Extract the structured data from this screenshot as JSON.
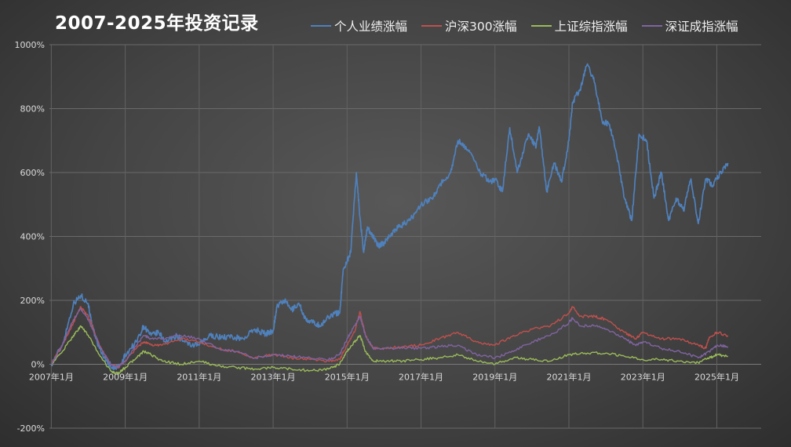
{
  "chart_data": {
    "type": "line",
    "title": "2007-2025年投资记录",
    "xlabel": "",
    "ylabel": "",
    "x_tick_labels": [
      "2007年1月",
      "2009年1月",
      "2011年1月",
      "2013年1月",
      "2015年1月",
      "2017年1月",
      "2019年1月",
      "2021年1月",
      "2023年1月",
      "2025年1月"
    ],
    "x_tick_years": [
      2007,
      2009,
      2011,
      2013,
      2015,
      2017,
      2019,
      2021,
      2023,
      2025
    ],
    "y_tick_labels": [
      "-200%",
      "0%",
      "200%",
      "400%",
      "600%",
      "800%",
      "1000%"
    ],
    "y_tick_values": [
      -200,
      0,
      200,
      400,
      600,
      800,
      1000
    ],
    "xlim": [
      2006.95,
      2026.2
    ],
    "ylim": [
      -200,
      1000
    ],
    "grid": true,
    "legend_position": "top",
    "series": [
      {
        "name": "个人业绩涨幅",
        "color": "#4f81bd",
        "x": [
          2007.0,
          2007.3,
          2007.6,
          2007.8,
          2008.0,
          2008.1,
          2008.3,
          2008.5,
          2008.7,
          2008.9,
          2009.0,
          2009.3,
          2009.5,
          2009.7,
          2009.9,
          2010.1,
          2010.4,
          2010.7,
          2011.0,
          2011.3,
          2011.6,
          2011.9,
          2012.2,
          2012.5,
          2012.8,
          2013.0,
          2013.1,
          2013.3,
          2013.5,
          2013.7,
          2013.9,
          2014.1,
          2014.3,
          2014.5,
          2014.7,
          2014.8,
          2014.9,
          2015.1,
          2015.25,
          2015.35,
          2015.45,
          2015.55,
          2015.7,
          2015.85,
          2016.0,
          2016.2,
          2016.4,
          2016.7,
          2017.0,
          2017.3,
          2017.5,
          2017.8,
          2018.0,
          2018.3,
          2018.6,
          2018.9,
          2019.0,
          2019.2,
          2019.4,
          2019.6,
          2019.9,
          2020.1,
          2020.2,
          2020.4,
          2020.6,
          2020.8,
          2021.0,
          2021.1,
          2021.3,
          2021.5,
          2021.7,
          2021.9,
          2022.1,
          2022.3,
          2022.5,
          2022.7,
          2022.9,
          2023.1,
          2023.3,
          2023.5,
          2023.7,
          2023.9,
          2024.1,
          2024.3,
          2024.5,
          2024.7,
          2024.9,
          2025.1,
          2025.3
        ],
        "values": [
          0,
          60,
          190,
          215,
          190,
          120,
          50,
          10,
          -15,
          0,
          30,
          70,
          120,
          90,
          100,
          70,
          90,
          60,
          60,
          90,
          85,
          85,
          80,
          110,
          95,
          105,
          180,
          200,
          170,
          190,
          135,
          130,
          120,
          150,
          160,
          160,
          300,
          350,
          600,
          460,
          350,
          430,
          400,
          370,
          380,
          410,
          430,
          450,
          500,
          520,
          560,
          600,
          700,
          670,
          600,
          570,
          580,
          540,
          740,
          600,
          720,
          680,
          740,
          540,
          630,
          570,
          700,
          820,
          860,
          940,
          880,
          760,
          750,
          650,
          520,
          450,
          720,
          700,
          520,
          600,
          450,
          520,
          480,
          580,
          440,
          580,
          560,
          600,
          630
        ]
      },
      {
        "name": "沪深300涨幅",
        "color": "#c0504d",
        "x": [
          2007.0,
          2007.3,
          2007.6,
          2007.8,
          2008.0,
          2008.3,
          2008.6,
          2008.8,
          2009.0,
          2009.3,
          2009.5,
          2009.7,
          2010.0,
          2010.5,
          2011.0,
          2011.5,
          2012.0,
          2012.5,
          2013.0,
          2013.5,
          2014.0,
          2014.5,
          2014.8,
          2015.0,
          2015.2,
          2015.35,
          2015.5,
          2015.7,
          2016.0,
          2016.5,
          2017.0,
          2017.5,
          2018.0,
          2018.5,
          2019.0,
          2019.5,
          2020.0,
          2020.5,
          2021.0,
          2021.1,
          2021.3,
          2021.7,
          2022.0,
          2022.5,
          2022.8,
          2023.0,
          2023.5,
          2024.0,
          2024.5,
          2024.7,
          2024.8,
          2025.0,
          2025.3
        ],
        "values": [
          0,
          60,
          130,
          180,
          150,
          60,
          0,
          -10,
          10,
          50,
          70,
          60,
          60,
          80,
          70,
          50,
          40,
          20,
          30,
          20,
          15,
          10,
          15,
          60,
          100,
          165,
          90,
          50,
          50,
          55,
          60,
          80,
          100,
          70,
          60,
          90,
          110,
          120,
          160,
          180,
          150,
          150,
          140,
          100,
          80,
          100,
          80,
          80,
          60,
          50,
          85,
          100,
          90
        ]
      },
      {
        "name": "上证综指涨幅",
        "color": "#9bbb59",
        "x": [
          2007.0,
          2007.3,
          2007.6,
          2007.8,
          2008.0,
          2008.3,
          2008.6,
          2008.8,
          2009.0,
          2009.3,
          2009.5,
          2009.7,
          2010.0,
          2010.5,
          2011.0,
          2011.5,
          2012.0,
          2012.5,
          2013.0,
          2013.5,
          2014.0,
          2014.5,
          2014.8,
          2015.0,
          2015.2,
          2015.35,
          2015.5,
          2015.7,
          2016.0,
          2016.5,
          2017.0,
          2017.5,
          2018.0,
          2018.5,
          2019.0,
          2019.5,
          2020.0,
          2020.5,
          2021.0,
          2021.5,
          2022.0,
          2022.5,
          2023.0,
          2023.5,
          2024.0,
          2024.5,
          2024.8,
          2025.0,
          2025.3
        ],
        "values": [
          0,
          40,
          90,
          120,
          90,
          30,
          -20,
          -30,
          -10,
          20,
          40,
          30,
          10,
          0,
          10,
          -5,
          -10,
          -15,
          -10,
          -15,
          -20,
          -15,
          0,
          40,
          70,
          90,
          40,
          10,
          10,
          10,
          15,
          20,
          30,
          10,
          0,
          20,
          15,
          10,
          30,
          35,
          35,
          25,
          15,
          15,
          10,
          5,
          20,
          30,
          25
        ]
      },
      {
        "name": "深证成指涨幅",
        "color": "#8064a2",
        "x": [
          2007.0,
          2007.3,
          2007.6,
          2007.8,
          2008.0,
          2008.3,
          2008.6,
          2008.8,
          2009.0,
          2009.3,
          2009.5,
          2009.7,
          2010.0,
          2010.5,
          2011.0,
          2011.5,
          2012.0,
          2012.5,
          2013.0,
          2013.5,
          2014.0,
          2014.5,
          2014.8,
          2015.0,
          2015.2,
          2015.35,
          2015.5,
          2015.7,
          2016.0,
          2016.5,
          2017.0,
          2017.5,
          2018.0,
          2018.5,
          2019.0,
          2019.5,
          2020.0,
          2020.5,
          2021.0,
          2021.1,
          2021.3,
          2021.7,
          2022.0,
          2022.5,
          2022.8,
          2023.0,
          2023.5,
          2024.0,
          2024.5,
          2024.8,
          2025.0,
          2025.3
        ],
        "values": [
          0,
          60,
          140,
          175,
          140,
          60,
          0,
          -10,
          10,
          60,
          90,
          80,
          80,
          90,
          80,
          50,
          40,
          20,
          30,
          25,
          20,
          15,
          30,
          80,
          120,
          150,
          90,
          50,
          50,
          50,
          50,
          55,
          60,
          30,
          20,
          40,
          70,
          90,
          130,
          145,
          120,
          120,
          110,
          80,
          60,
          70,
          50,
          40,
          20,
          40,
          60,
          55
        ]
      }
    ]
  }
}
